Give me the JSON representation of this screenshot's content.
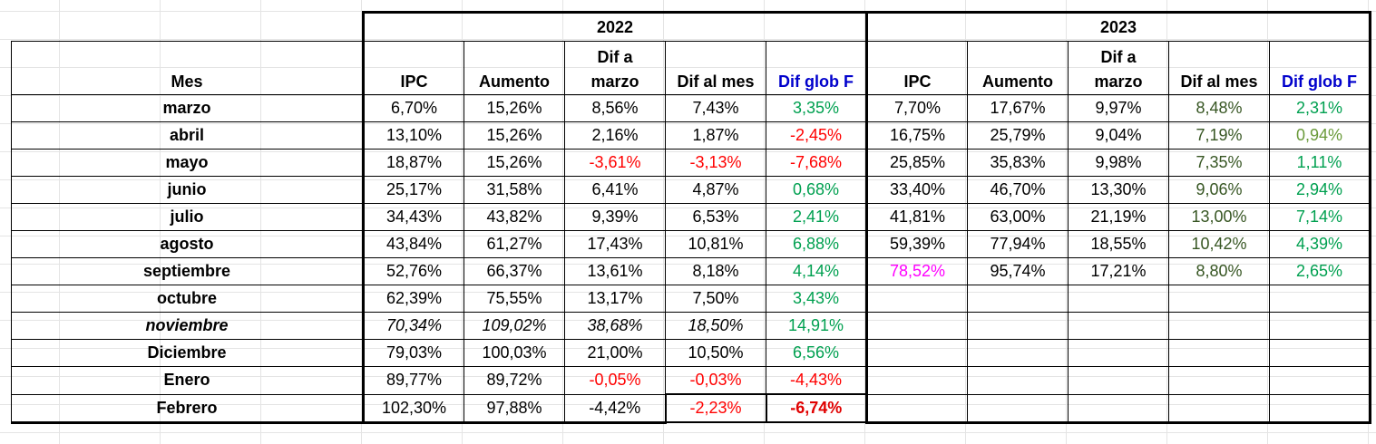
{
  "years": [
    "2022",
    "2023"
  ],
  "mes_header": "Mes",
  "col_headers": {
    "ipc": "IPC",
    "aumento": "Aumento",
    "dif_marzo_1": "Dif a",
    "dif_marzo_2": "marzo",
    "dif_mes": "Dif al mes",
    "dif_glob": "Dif glob F"
  },
  "rows": [
    {
      "mes": "marzo",
      "italic": false,
      "y2022": [
        "6,70%",
        "15,26%",
        "8,56%",
        "7,43%",
        "3,35%"
      ],
      "c2022": [
        "blk",
        "blk",
        "blk",
        "blk",
        "green"
      ],
      "y2023": [
        "7,70%",
        "17,67%",
        "9,97%",
        "8,48%",
        "2,31%"
      ],
      "c2023": [
        "blk",
        "blk",
        "blk",
        "dgreen",
        "green"
      ]
    },
    {
      "mes": "abril",
      "italic": false,
      "y2022": [
        "13,10%",
        "15,26%",
        "2,16%",
        "1,87%",
        "-2,45%"
      ],
      "c2022": [
        "blk",
        "blk",
        "blk",
        "blk",
        "red"
      ],
      "y2023": [
        "16,75%",
        "25,79%",
        "9,04%",
        "7,19%",
        "0,94%"
      ],
      "c2023": [
        "blk",
        "blk",
        "blk",
        "dgreen",
        "lgreen"
      ]
    },
    {
      "mes": "mayo",
      "italic": false,
      "y2022": [
        "18,87%",
        "15,26%",
        "-3,61%",
        "-3,13%",
        "-7,68%"
      ],
      "c2022": [
        "blk",
        "blk",
        "red",
        "red",
        "red"
      ],
      "y2023": [
        "25,85%",
        "35,83%",
        "9,98%",
        "7,35%",
        "1,11%"
      ],
      "c2023": [
        "blk",
        "blk",
        "blk",
        "dgreen",
        "green"
      ]
    },
    {
      "mes": "junio",
      "italic": false,
      "y2022": [
        "25,17%",
        "31,58%",
        "6,41%",
        "4,87%",
        "0,68%"
      ],
      "c2022": [
        "blk",
        "blk",
        "blk",
        "blk",
        "green"
      ],
      "y2023": [
        "33,40%",
        "46,70%",
        "13,30%",
        "9,06%",
        "2,94%"
      ],
      "c2023": [
        "blk",
        "blk",
        "blk",
        "dgreen",
        "green"
      ]
    },
    {
      "mes": "julio",
      "italic": false,
      "y2022": [
        "34,43%",
        "43,82%",
        "9,39%",
        "6,53%",
        "2,41%"
      ],
      "c2022": [
        "blk",
        "blk",
        "blk",
        "blk",
        "green"
      ],
      "y2023": [
        "41,81%",
        "63,00%",
        "21,19%",
        "13,00%",
        "7,14%"
      ],
      "c2023": [
        "blk",
        "blk",
        "blk",
        "dgreen",
        "green"
      ]
    },
    {
      "mes": "agosto",
      "italic": false,
      "y2022": [
        "43,84%",
        "61,27%",
        "17,43%",
        "10,81%",
        "6,88%"
      ],
      "c2022": [
        "blk",
        "blk",
        "blk",
        "blk",
        "green"
      ],
      "y2023": [
        "59,39%",
        "77,94%",
        "18,55%",
        "10,42%",
        "4,39%"
      ],
      "c2023": [
        "blk",
        "blk",
        "blk",
        "dgreen",
        "green"
      ]
    },
    {
      "mes": "septiembre",
      "italic": false,
      "y2022": [
        "52,76%",
        "66,37%",
        "13,61%",
        "8,18%",
        "4,14%"
      ],
      "c2022": [
        "blk",
        "blk",
        "blk",
        "blk",
        "green"
      ],
      "y2023": [
        "78,52%",
        "95,74%",
        "17,21%",
        "8,80%",
        "2,65%"
      ],
      "c2023": [
        "mag",
        "blk",
        "blk",
        "dgreen",
        "green"
      ]
    },
    {
      "mes": "octubre",
      "italic": false,
      "y2022": [
        "62,39%",
        "75,55%",
        "13,17%",
        "7,50%",
        "3,43%"
      ],
      "c2022": [
        "blk",
        "blk",
        "blk",
        "blk",
        "green"
      ],
      "y2023": [
        "",
        "",
        "",
        "",
        ""
      ],
      "c2023": [
        "blk",
        "blk",
        "blk",
        "blk",
        "blk"
      ]
    },
    {
      "mes": "noviembre",
      "italic": true,
      "y2022": [
        "70,34%",
        "109,02%",
        "38,68%",
        "18,50%",
        "14,91%"
      ],
      "c2022": [
        "blk",
        "blk",
        "blk",
        "blk",
        "green"
      ],
      "y2023": [
        "",
        "",
        "",
        "",
        ""
      ],
      "c2023": [
        "blk",
        "blk",
        "blk",
        "blk",
        "blk"
      ]
    },
    {
      "mes": "Diciembre",
      "italic": false,
      "y2022": [
        "79,03%",
        "100,03%",
        "21,00%",
        "10,50%",
        "6,56%"
      ],
      "c2022": [
        "blk",
        "blk",
        "blk",
        "blk",
        "green"
      ],
      "y2023": [
        "",
        "",
        "",
        "",
        ""
      ],
      "c2023": [
        "blk",
        "blk",
        "blk",
        "blk",
        "blk"
      ]
    },
    {
      "mes": "Enero",
      "italic": false,
      "y2022": [
        "89,77%",
        "89,72%",
        "-0,05%",
        "-0,03%",
        "-4,43%"
      ],
      "c2022": [
        "blk",
        "blk",
        "red",
        "red",
        "red"
      ],
      "y2023": [
        "",
        "",
        "",
        "",
        ""
      ],
      "c2023": [
        "blk",
        "blk",
        "blk",
        "blk",
        "blk"
      ]
    },
    {
      "mes": "Febrero",
      "italic": false,
      "y2022": [
        "102,30%",
        "97,88%",
        "-4,42%",
        "-2,23%",
        "-6,74%"
      ],
      "c2022": [
        "blk",
        "blk",
        "blk",
        "red",
        "redbold"
      ],
      "y2023": [
        "",
        "",
        "",
        "",
        ""
      ],
      "c2023": [
        "blk",
        "blk",
        "blk",
        "blk",
        "blk"
      ]
    }
  ],
  "colors": {
    "green": "#00a050",
    "dark_green": "#375623",
    "light_green": "#6a9a3a",
    "red": "#ff0000",
    "magenta": "#ff00ff",
    "blue_header": "#0000cc"
  }
}
